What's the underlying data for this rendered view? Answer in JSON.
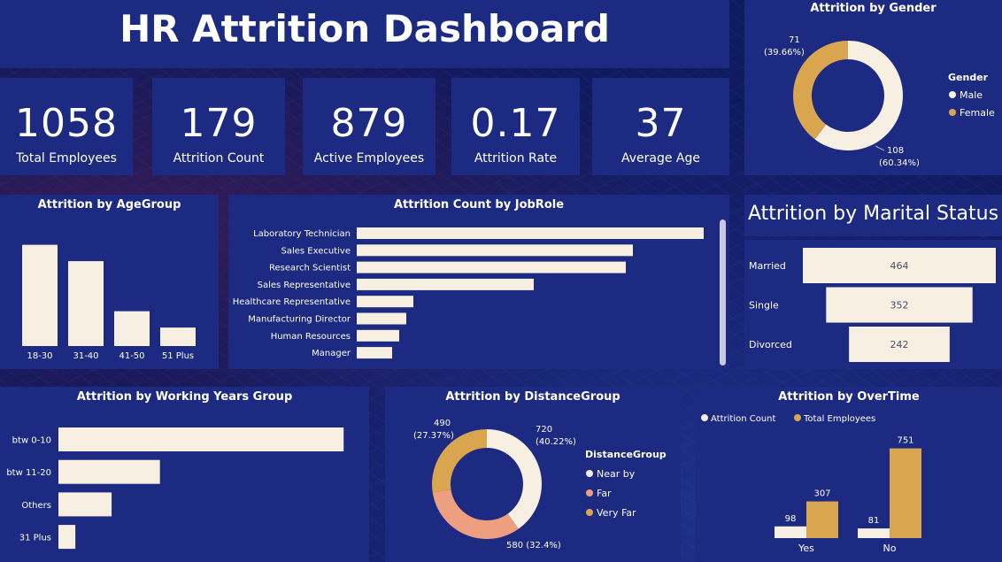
{
  "title": "HR Attrition Dashboard",
  "kpis": [
    {
      "value": "1058",
      "label": "Total Employees"
    },
    {
      "value": "179",
      "label": "Attrition Count"
    },
    {
      "value": "879",
      "label": "Active Employees"
    },
    {
      "value": "0.17",
      "label": "Attrition Rate"
    },
    {
      "value": "37",
      "label": "Average Age"
    }
  ],
  "colors": {
    "cream": "#f6efe2",
    "gold": "#d9a54f",
    "salmon": "#ee9f80",
    "panel": "#1d2a82",
    "value_text": "#44506a"
  },
  "chart_data": [
    {
      "id": "gender",
      "type": "pie",
      "title": "Attrition by Gender",
      "legend_title": "Gender",
      "legend_position": "right",
      "slices": [
        {
          "label": "Male",
          "value": 108,
          "pct": "(60.34%)",
          "color": "#f6efe2"
        },
        {
          "label": "Female",
          "value": 71,
          "pct": "(39.66%)",
          "color": "#d9a54f"
        }
      ]
    },
    {
      "id": "agegroup",
      "type": "bar",
      "title": "Attrition by AgeGroup",
      "categories": [
        "18-30",
        "31-40",
        "41-50",
        "51 Plus"
      ],
      "values": [
        93,
        78,
        32,
        17
      ],
      "ylim": [
        0,
        100
      ],
      "grid": false
    },
    {
      "id": "jobrole",
      "type": "bar",
      "orientation": "horizontal",
      "title": "Attrition Count by JobRole",
      "categories": [
        "Laboratory Technician",
        "Sales Executive",
        "Research Scientist",
        "Sales Representative",
        "Healthcare Representative",
        "Manufacturing Director",
        "Human Resources",
        "Manager"
      ],
      "values": [
        49,
        39,
        38,
        25,
        8,
        7,
        6,
        5
      ],
      "xlim": [
        0,
        50
      ],
      "grid": false
    },
    {
      "id": "marital",
      "type": "bar",
      "orientation": "horizontal",
      "subtype": "funnel",
      "title": "Attrition by Marital Status",
      "categories": [
        "Married",
        "Single",
        "Divorced"
      ],
      "values": [
        464,
        352,
        242
      ]
    },
    {
      "id": "workingyears",
      "type": "bar",
      "orientation": "horizontal",
      "title": "Attrition by Working Years Group",
      "categories": [
        "btw 0-10",
        "btw 11-20",
        "Others",
        "31 Plus"
      ],
      "values": [
        118,
        42,
        22,
        7
      ],
      "xlim": [
        0,
        130
      ],
      "grid": false
    },
    {
      "id": "distance",
      "type": "pie",
      "title": "Attrition by DistanceGroup",
      "legend_title": "DistanceGroup",
      "legend_position": "right",
      "slices": [
        {
          "label": "Near by",
          "value": 720,
          "pct": "(40.22%)",
          "color": "#f6efe2"
        },
        {
          "label": "Far",
          "value": 580,
          "pct": "(32.4%)",
          "color": "#ee9f80"
        },
        {
          "label": "Very Far",
          "value": 490,
          "pct": "(27.37%)",
          "color": "#d9a54f"
        }
      ]
    },
    {
      "id": "overtime",
      "type": "bar",
      "title": "Attrition by OverTime",
      "legend_position": "top-left",
      "categories": [
        "Yes",
        "No"
      ],
      "series": [
        {
          "name": "Attrition Count",
          "values": [
            98,
            81
          ],
          "color": "#f6efe2"
        },
        {
          "name": "Total Employees",
          "values": [
            307,
            751
          ],
          "color": "#d9a54f"
        }
      ],
      "ylim": [
        0,
        800
      ],
      "grid": false
    }
  ]
}
